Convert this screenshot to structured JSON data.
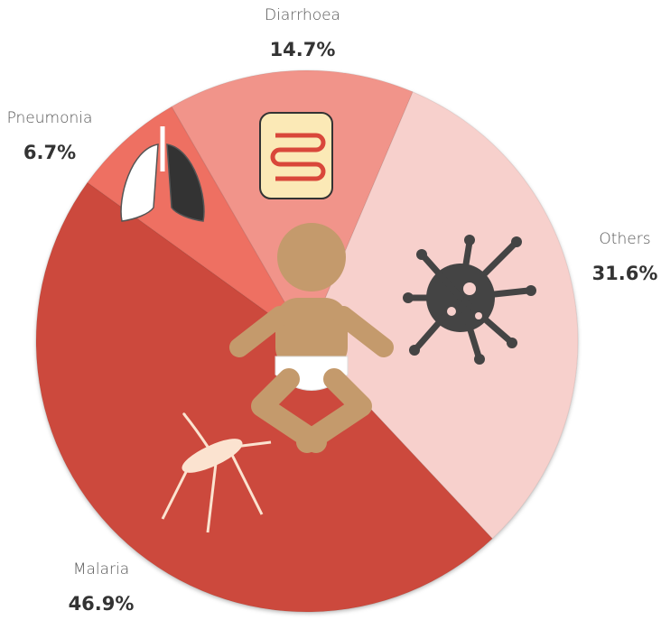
{
  "chart_data": {
    "type": "pie",
    "categories": [
      "Diarrhoea",
      "Others",
      "Malaria",
      "Pneumonia"
    ],
    "values": [
      14.7,
      31.6,
      46.9,
      6.7
    ],
    "value_labels": [
      "14.7%",
      "31.6%",
      "46.9%",
      "6.7%"
    ],
    "colors": [
      "#f1948a",
      "#f7d0cc",
      "#cc4a3c",
      "#ee6f62"
    ]
  }
}
